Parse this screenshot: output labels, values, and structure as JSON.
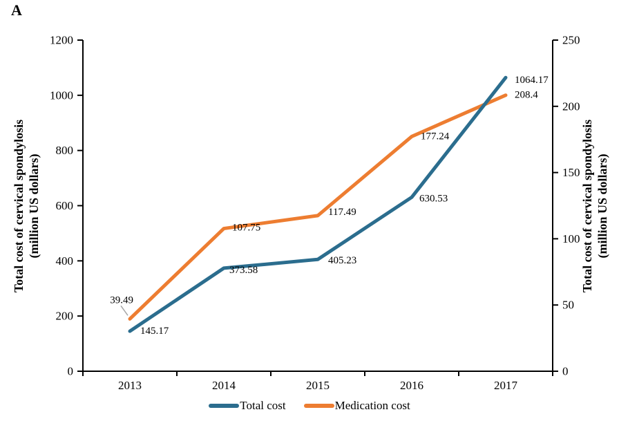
{
  "panel_label": "A",
  "chart_data": {
    "type": "line",
    "title": "",
    "categories": [
      "2013",
      "2014",
      "2015",
      "2016",
      "2017"
    ],
    "series": [
      {
        "name": "Total cost",
        "axis": "left",
        "color": "#2b6d8e",
        "values": [
          145.17,
          373.58,
          405.23,
          630.53,
          1064.17
        ],
        "point_labels": [
          "145.17",
          "373.58",
          "405.23",
          "630.53",
          "1064.17"
        ]
      },
      {
        "name": "Medication cost",
        "axis": "right",
        "color": "#ed7d31",
        "values": [
          39.49,
          107.75,
          117.49,
          177.24,
          208.4
        ],
        "point_labels": [
          "39.49",
          "107.75",
          "117.49",
          "177.24",
          "208.4"
        ]
      }
    ],
    "left_axis": {
      "label_line1": "Total cost of cervical spondylosis",
      "label_line2": "(million  US dollars)",
      "min": 0,
      "max": 1200,
      "step": 200
    },
    "right_axis": {
      "label_line1": "Total cost of cervical spondylosis",
      "label_line2": "(million  US dollars)",
      "min": 0,
      "max": 250,
      "step": 50
    },
    "legend_position": "bottom",
    "grid": false,
    "axis_color": "#000000",
    "callout_color": "#a6a6a6"
  }
}
